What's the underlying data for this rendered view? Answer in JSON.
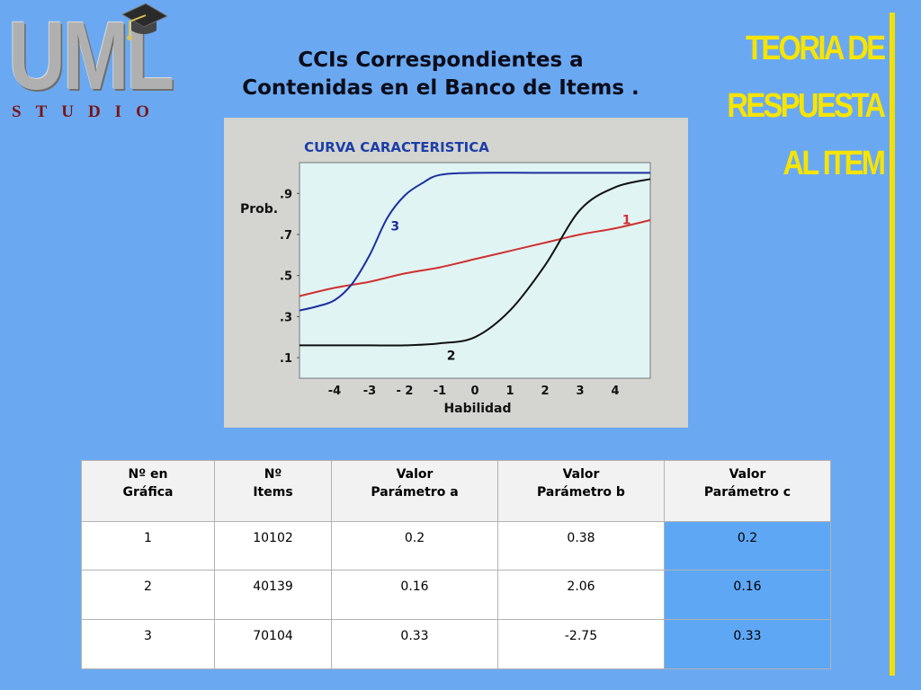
{
  "logo": {
    "main_text": "UML",
    "sub_text": "STUDIO"
  },
  "title": {
    "line1": "CCIs Correspondientes a",
    "line2": "Contenidas en el Banco de Items ."
  },
  "side_title": {
    "line1": "TEORIA DE",
    "line2": "RESPUESTA",
    "line3": "AL ITEM"
  },
  "colors": {
    "background": "#6aa9f2",
    "side_title": "#f7e400",
    "plot_bg": "#e0f4f4",
    "curve1": "#d03030",
    "curve2": "#101010",
    "curve3": "#1c2fa0",
    "chart_title": "#1c3ea8",
    "highlight_cell": "#5ea7f5"
  },
  "chart_data": {
    "type": "line",
    "title": "CURVA CARACTERISTICA",
    "xlabel": "Habilidad",
    "ylabel": "Prob.",
    "x_ticks": [
      "-4",
      "-3",
      "- 2",
      "-1",
      "0",
      "1",
      "2",
      "3",
      "4"
    ],
    "y_ticks": [
      ".1",
      ".3",
      ".5",
      ".7",
      ".9"
    ],
    "xlim": [
      -5,
      5
    ],
    "ylim": [
      0,
      1.05
    ],
    "grid": false,
    "series": [
      {
        "name": "1",
        "label": "1",
        "points": [
          [
            -5,
            0.4
          ],
          [
            -4,
            0.44
          ],
          [
            -3,
            0.47
          ],
          [
            -2,
            0.51
          ],
          [
            -1,
            0.54
          ],
          [
            0,
            0.58
          ],
          [
            1,
            0.62
          ],
          [
            2,
            0.66
          ],
          [
            3,
            0.7
          ],
          [
            4,
            0.73
          ],
          [
            5,
            0.77
          ]
        ]
      },
      {
        "name": "2",
        "label": "2",
        "points": [
          [
            -5,
            0.16
          ],
          [
            -4,
            0.16
          ],
          [
            -3,
            0.16
          ],
          [
            -2,
            0.16
          ],
          [
            -1,
            0.17
          ],
          [
            0,
            0.2
          ],
          [
            1,
            0.33
          ],
          [
            2,
            0.55
          ],
          [
            3,
            0.82
          ],
          [
            4,
            0.93
          ],
          [
            5,
            0.97
          ]
        ]
      },
      {
        "name": "3",
        "label": "3",
        "points": [
          [
            -5,
            0.33
          ],
          [
            -4.5,
            0.35
          ],
          [
            -4,
            0.38
          ],
          [
            -3.5,
            0.46
          ],
          [
            -3,
            0.6
          ],
          [
            -2.5,
            0.78
          ],
          [
            -2,
            0.89
          ],
          [
            -1.5,
            0.95
          ],
          [
            -1,
            0.99
          ],
          [
            0,
            1.0
          ],
          [
            2,
            1.0
          ],
          [
            5,
            1.0
          ]
        ]
      }
    ]
  },
  "table": {
    "headers": [
      {
        "line1": "Nº en",
        "line2": "Gráfica"
      },
      {
        "line1": "Nº",
        "line2": "Items"
      },
      {
        "line1": "Valor",
        "line2": "Parámetro a"
      },
      {
        "line1": "Valor",
        "line2": "Parámetro b"
      },
      {
        "line1": "Valor",
        "line2": "Parámetro c"
      }
    ],
    "rows": [
      [
        "1",
        "10102",
        "0.2",
        "0.38",
        "0.2"
      ],
      [
        "2",
        "40139",
        "0.16",
        "2.06",
        "0.16"
      ],
      [
        "3",
        "70104",
        "0.33",
        "-2.75",
        "0.33"
      ]
    ]
  }
}
